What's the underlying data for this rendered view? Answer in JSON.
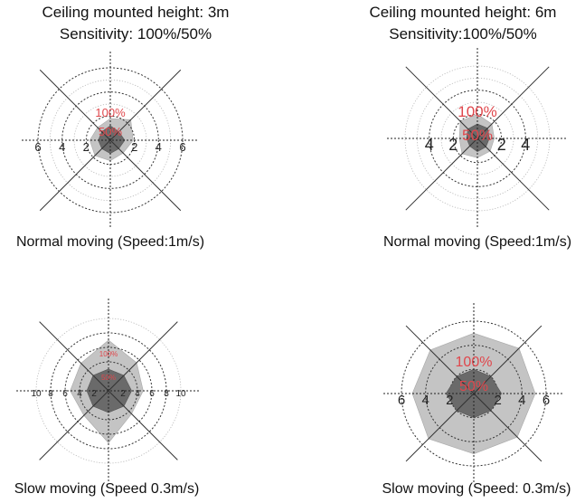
{
  "headers": {
    "left": {
      "height": "Ceiling mounted height: 3m",
      "sensitivity": "Sensitivity: 100%/50%"
    },
    "right": {
      "height": "Ceiling mounted height: 6m",
      "sensitivity": "Sensitivity:100%/50%"
    }
  },
  "captions": {
    "tl": "Normal moving (Speed:1m/s)",
    "tr": "Normal moving (Speed:1m/s)",
    "bl": "Slow moving (Speed 0.3m/s)",
    "br": "Slow moving (Speed: 0.3m/s)"
  },
  "charts": [
    {
      "id": "tl",
      "max": 6,
      "dashed_rings": [
        2,
        4,
        6
      ],
      "dotted_rings": [
        1,
        3,
        5
      ],
      "ticks": [
        "6",
        "4",
        "2",
        "2",
        "4",
        "6"
      ],
      "tick_values": [
        -6,
        -4,
        -2,
        2,
        4,
        6
      ],
      "outer_radii": [
        1.8,
        2.4,
        1.9,
        1.5,
        1.7,
        1.8,
        1.7,
        1.5
      ],
      "inner_radii": [
        1.2,
        1.0,
        1.2,
        1.0,
        1.1,
        1.0,
        1.0,
        1.0
      ],
      "label_100": "100%",
      "label_50": "50%",
      "label_size": 13,
      "label_color": "#e0474c"
    },
    {
      "id": "tr",
      "max": 6,
      "dashed_rings": [
        2,
        4
      ],
      "dotted_rings": [
        1,
        3,
        5,
        6
      ],
      "ticks": [
        "4",
        "2",
        "2",
        "4"
      ],
      "tick_values": [
        -4,
        -2,
        2,
        4
      ],
      "outer_radii": [
        2.0,
        1.7,
        1.4,
        1.5,
        1.6,
        1.8,
        1.5,
        2.0
      ],
      "inner_radii": [
        1.2,
        1.2,
        1.0,
        1.0,
        1.1,
        0.9,
        0.9,
        1.1
      ],
      "label_100": "100%",
      "label_50": "50%",
      "label_size": 17,
      "label_color": "#e0474c"
    },
    {
      "id": "bl",
      "max": 10,
      "dashed_rings": [
        2,
        4,
        6,
        8
      ],
      "dotted_rings": [
        10
      ],
      "ticks": [
        "10",
        "8",
        "6",
        "4",
        "2",
        "2",
        "4",
        "6",
        "8",
        "10"
      ],
      "tick_values": [
        -10,
        -8,
        -6,
        -4,
        -2,
        2,
        4,
        6,
        8,
        10
      ],
      "outer_radii": [
        7.0,
        5.5,
        4.8,
        4.5,
        7.2,
        4.8,
        5.3,
        5.4
      ],
      "inner_radii": [
        3.0,
        3.0,
        3.2,
        3.0,
        3.0,
        3.0,
        3.0,
        3.0
      ],
      "label_100": "100%",
      "label_50": "50%",
      "label_size": 8,
      "label_color": "#e0474c"
    },
    {
      "id": "br",
      "max": 6,
      "dashed_rings": [
        2,
        4,
        6
      ],
      "dotted_rings": [],
      "ticks": [
        "6",
        "4",
        "2",
        "2",
        "4",
        "6"
      ],
      "tick_values": [
        -6,
        -4,
        -2,
        2,
        4,
        6
      ],
      "outer_radii": [
        5.0,
        5.3,
        5.1,
        5.1,
        5.0,
        5.3,
        5.1,
        5.1
      ],
      "inner_radii": [
        2.0,
        2.0,
        2.3,
        2.0,
        2.0,
        2.0,
        2.3,
        2.0
      ],
      "label_100": "100%",
      "label_50": "50%",
      "label_size": 16,
      "label_color": "#e0474c"
    }
  ]
}
